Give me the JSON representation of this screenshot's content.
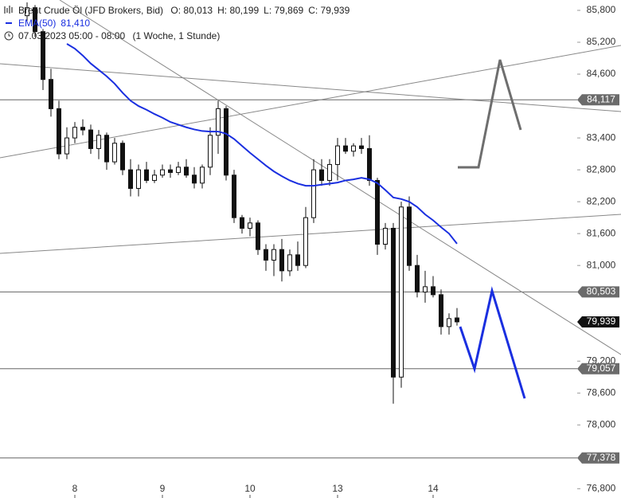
{
  "chart_data": {
    "type": "candlestick",
    "header": {
      "symbol": "Brent Crude Öl (JFD Brokers, Bid)",
      "open": "O: 80,013",
      "high": "H: 80,199",
      "low": "L: 79,869",
      "close": "C: 79,939",
      "ema_name": "EMA(50)",
      "ema_value": "81,410",
      "time": "07.03.2023 05:00 - 08:00",
      "interval": "(1 Woche, 1 Stunde)"
    },
    "categories": [
      null,
      null,
      null,
      null,
      null,
      null,
      "8",
      null,
      null,
      null,
      null,
      null,
      null,
      null,
      null,
      null,
      null,
      "9",
      null,
      null,
      null,
      null,
      null,
      null,
      null,
      null,
      null,
      null,
      "10",
      null,
      null,
      null,
      null,
      null,
      null,
      null,
      null,
      null,
      null,
      "13",
      null,
      null,
      null,
      null,
      null,
      null,
      null,
      null,
      null,
      null,
      null,
      "14",
      null,
      null,
      null
    ],
    "open": [
      85700,
      85850,
      85400,
      84500,
      83950,
      83100,
      83400,
      83600,
      83550,
      83200,
      83450,
      82950,
      83300,
      82800,
      82450,
      82800,
      82600,
      82700,
      82800,
      82750,
      82850,
      82700,
      82550,
      82850,
      83450,
      83950,
      82700,
      81900,
      81700,
      81800,
      81300,
      81100,
      81300,
      80900,
      81200,
      81000,
      81900,
      82800,
      82600,
      82900,
      83250,
      83150,
      83250,
      83200,
      82600,
      81400,
      81700,
      78900,
      82100,
      81000,
      80500,
      80600,
      80450,
      79850,
      80013
    ],
    "high": [
      85950,
      85900,
      85450,
      84700,
      84100,
      83600,
      83700,
      83750,
      83650,
      83550,
      83500,
      83400,
      83350,
      83000,
      82900,
      82950,
      82800,
      82900,
      82900,
      82950,
      83000,
      82850,
      82900,
      83600,
      84100,
      84000,
      82800,
      81950,
      81900,
      81850,
      81400,
      81400,
      81500,
      81300,
      81450,
      82100,
      83000,
      83000,
      83000,
      83400,
      83400,
      83300,
      83400,
      83450,
      82650,
      81800,
      81800,
      82200,
      82300,
      81200,
      80900,
      80800,
      80550,
      80100,
      80199
    ],
    "low": [
      85600,
      85300,
      84300,
      83800,
      83000,
      83000,
      83300,
      83450,
      83100,
      83000,
      82800,
      82900,
      82700,
      82300,
      82300,
      82550,
      82550,
      82650,
      82650,
      82700,
      82650,
      82450,
      82450,
      82700,
      83100,
      82600,
      81800,
      81600,
      81550,
      81200,
      80900,
      80800,
      80700,
      80800,
      80900,
      80950,
      81800,
      82500,
      82500,
      82600,
      83100,
      83050,
      83100,
      82500,
      81200,
      81300,
      78400,
      78700,
      80900,
      80400,
      80300,
      80400,
      79700,
      79700,
      79869
    ],
    "close": [
      85850,
      85400,
      84500,
      83950,
      83100,
      83400,
      83600,
      83550,
      83200,
      83450,
      82950,
      83300,
      82800,
      82450,
      82800,
      82600,
      82700,
      82800,
      82750,
      82850,
      82700,
      82550,
      82850,
      83450,
      83950,
      82700,
      81900,
      81700,
      81800,
      81300,
      81100,
      81300,
      80900,
      81200,
      81000,
      81900,
      82800,
      82600,
      82900,
      83250,
      83150,
      83250,
      83200,
      82600,
      81400,
      81700,
      78900,
      82100,
      81000,
      80500,
      80600,
      80450,
      79850,
      80000,
      79939
    ],
    "ema": {
      "color": "#1a2fe0",
      "values": [
        null,
        null,
        null,
        null,
        null,
        85170,
        85080,
        84950,
        84800,
        84680,
        84560,
        84420,
        84250,
        84100,
        84000,
        83930,
        83850,
        83780,
        83700,
        83650,
        83600,
        83560,
        83530,
        83520,
        83520,
        83480,
        83380,
        83250,
        83120,
        83000,
        82880,
        82770,
        82680,
        82600,
        82540,
        82500,
        82500,
        82520,
        82540,
        82560,
        82600,
        82620,
        82650,
        82620,
        82550,
        82420,
        82280,
        82250,
        82200,
        82100,
        81960,
        81850,
        81720,
        81600,
        81410
      ]
    },
    "ylim": [
      76625,
      85995
    ],
    "yticks": [
      {
        "value": 85800,
        "label": "85,800"
      },
      {
        "value": 85200,
        "label": "85,200"
      },
      {
        "value": 84600,
        "label": "84,600"
      },
      {
        "value": 83400,
        "label": "83,400"
      },
      {
        "value": 82800,
        "label": "82,800"
      },
      {
        "value": 82200,
        "label": "82,200"
      },
      {
        "value": 81600,
        "label": "81,600"
      },
      {
        "value": 81000,
        "label": "81,000"
      },
      {
        "value": 79200,
        "label": "79,200"
      },
      {
        "value": 78600,
        "label": "78,600"
      },
      {
        "value": 78000,
        "label": "78,000"
      },
      {
        "value": 76800,
        "label": "76,800"
      }
    ],
    "levels": [
      {
        "value": 84117,
        "label": "84,117"
      },
      {
        "value": 80503,
        "label": "80,503"
      },
      {
        "value": 79057,
        "label": "79,057"
      },
      {
        "value": 77378,
        "label": "77,378"
      }
    ],
    "last_price": {
      "value": 79939,
      "label": "79,939"
    }
  }
}
